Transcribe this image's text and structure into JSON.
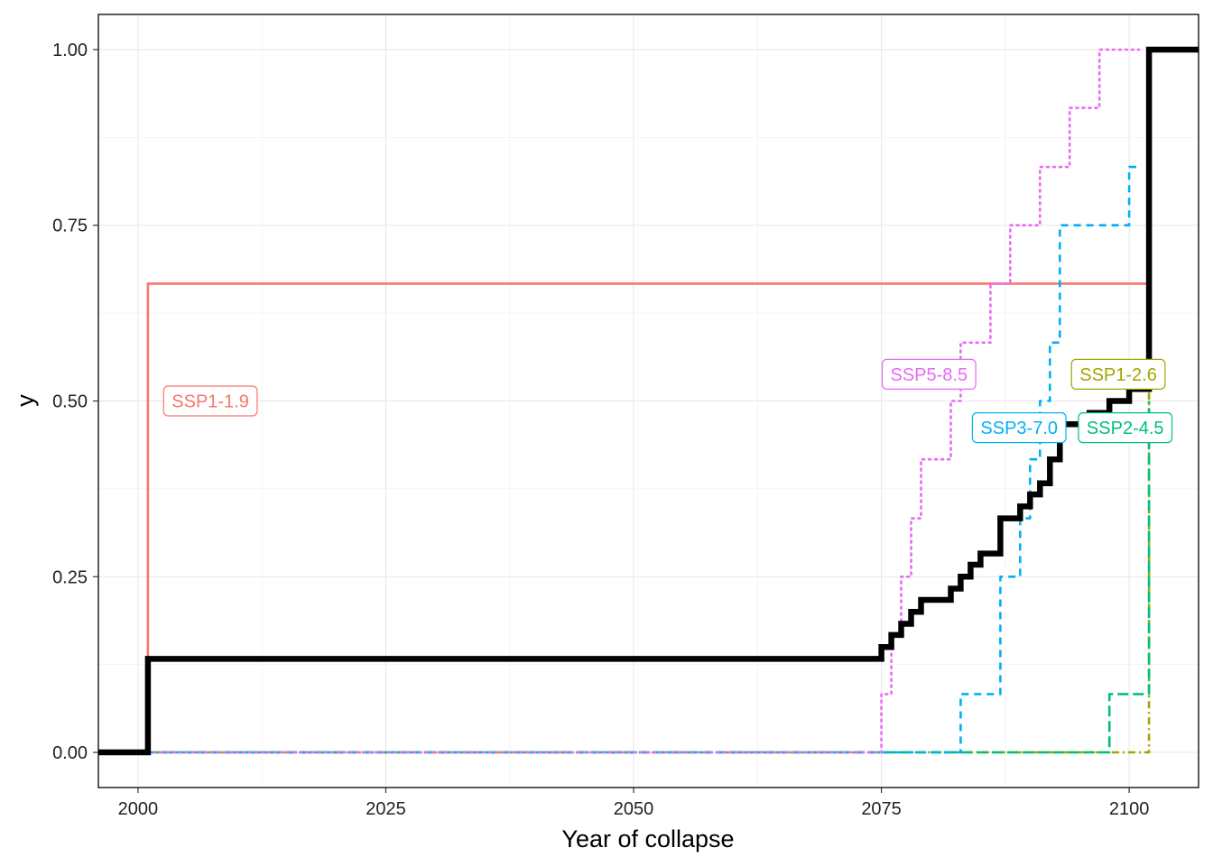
{
  "chart_data": {
    "type": "line",
    "title": "",
    "xlabel": "Year of collapse",
    "ylabel": "y",
    "xlim": [
      1996,
      2107
    ],
    "ylim": [
      -0.05,
      1.05
    ],
    "grid": true,
    "legend": "none",
    "x_ticks": [
      2000,
      2025,
      2050,
      2075,
      2100
    ],
    "x_tick_labels": [
      "2000",
      "2025",
      "2050",
      "2075",
      "2100"
    ],
    "y_ticks": [
      0,
      0.25,
      0.5,
      0.75,
      1
    ],
    "y_tick_labels": [
      "0.00",
      "0.25",
      "0.50",
      "0.75",
      "1.00"
    ],
    "series": [
      {
        "name": "SSP1-1.9",
        "color": "#F8766D",
        "dash": "solid",
        "x": [
          2001,
          2001,
          2102
        ],
        "y": [
          0,
          0.667,
          0.667
        ]
      },
      {
        "name": "SSP1-2.6",
        "color": "#A3A500",
        "dash": "dotdash",
        "x": [
          2001,
          2102,
          2102
        ],
        "y": [
          0,
          0,
          1.0
        ]
      },
      {
        "name": "SSP2-4.5",
        "color": "#00BF7D",
        "dash": "longdash",
        "x": [
          2001,
          2098,
          2098,
          2102,
          2102
        ],
        "y": [
          0,
          0,
          0.083,
          0.083,
          0.5
        ]
      },
      {
        "name": "SSP3-7.0",
        "color": "#00B0F6",
        "dash": "dashed",
        "x": [
          2001,
          2083,
          2083,
          2087,
          2087,
          2089,
          2089,
          2090,
          2090,
          2091,
          2091,
          2092,
          2092,
          2093,
          2093,
          2100,
          2100,
          2101
        ],
        "y": [
          0,
          0,
          0.083,
          0.083,
          0.25,
          0.25,
          0.333,
          0.333,
          0.417,
          0.417,
          0.5,
          0.5,
          0.583,
          0.583,
          0.75,
          0.75,
          0.833,
          0.833
        ]
      },
      {
        "name": "SSP5-8.5",
        "color": "#E76BF3",
        "dash": "dotted",
        "x": [
          2001,
          2075,
          2075,
          2076,
          2076,
          2077,
          2077,
          2078,
          2078,
          2079,
          2079,
          2082,
          2082,
          2083,
          2083,
          2084,
          2084,
          2085,
          2085,
          2086,
          2086,
          2088,
          2088,
          2091,
          2091,
          2094,
          2094,
          2096,
          2096,
          2097,
          2097,
          2101
        ],
        "y": [
          0,
          0,
          0.083,
          0.083,
          0.167,
          0.167,
          0.25,
          0.25,
          0.333,
          0.333,
          0.417,
          0.417,
          0.5,
          0.5,
          0.583,
          0.583,
          0.583,
          0.583,
          0.583,
          0.583,
          0.667,
          0.667,
          0.75,
          0.75,
          0.833,
          0.833,
          0.917,
          0.917,
          0.917,
          0.917,
          1.0,
          1.0
        ]
      },
      {
        "name": "",
        "color": "#000000",
        "dash": "solid",
        "bold": true,
        "x": [
          1996,
          2001,
          2001,
          2075,
          2075,
          2076,
          2076,
          2077,
          2077,
          2078,
          2078,
          2079,
          2079,
          2082,
          2082,
          2083,
          2083,
          2084,
          2084,
          2085,
          2085,
          2087,
          2087,
          2089,
          2089,
          2090,
          2090,
          2091,
          2091,
          2092,
          2092,
          2093,
          2093,
          2096,
          2096,
          2098,
          2098,
          2100,
          2100,
          2102,
          2102,
          2107
        ],
        "y": [
          0,
          0,
          0.133,
          0.133,
          0.15,
          0.15,
          0.167,
          0.167,
          0.183,
          0.183,
          0.2,
          0.2,
          0.217,
          0.217,
          0.233,
          0.233,
          0.25,
          0.25,
          0.267,
          0.267,
          0.283,
          0.283,
          0.333,
          0.333,
          0.35,
          0.35,
          0.367,
          0.367,
          0.383,
          0.383,
          0.417,
          0.417,
          0.467,
          0.467,
          0.483,
          0.483,
          0.5,
          0.5,
          0.517,
          0.517,
          1.0,
          1.0
        ]
      }
    ],
    "annotations": [
      {
        "text": "SSP1-1.9",
        "series": "SSP1-1.9",
        "color": "#F8766D",
        "x": 2007.3,
        "y": 0.5
      },
      {
        "text": "SSP5-8.5",
        "series": "SSP5-8.5",
        "color": "#E76BF3",
        "x": 2079.8,
        "y": 0.538
      },
      {
        "text": "SSP1-2.6",
        "series": "SSP1-2.6",
        "color": "#A3A500",
        "x": 2098.9,
        "y": 0.538
      },
      {
        "text": "SSP3-7.0",
        "series": "SSP3-7.0",
        "color": "#00B0F6",
        "x": 2088.9,
        "y": 0.462
      },
      {
        "text": "SSP2-4.5",
        "series": "SSP2-4.5",
        "color": "#00BF7D",
        "x": 2099.6,
        "y": 0.462
      }
    ]
  }
}
